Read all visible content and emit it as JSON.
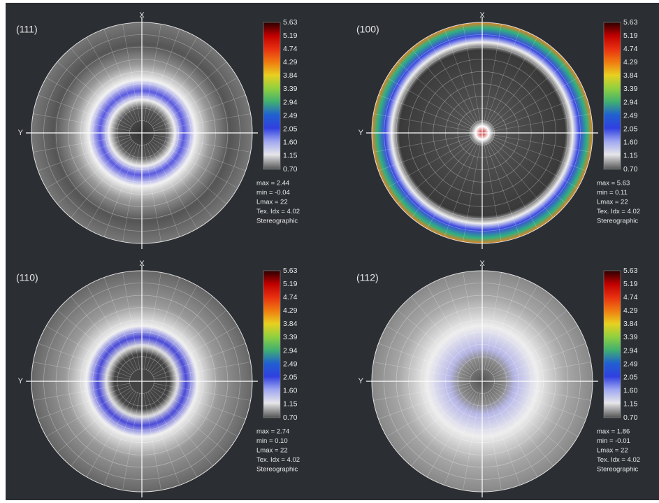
{
  "panels": [
    {
      "label": "(111)",
      "x_label": "X",
      "y_label": "Y",
      "colorbar": [
        "5.63",
        "5.19",
        "4.74",
        "4.29",
        "3.84",
        "3.39",
        "2.94",
        "2.49",
        "2.05",
        "1.60",
        "1.15",
        "0.70"
      ],
      "stats": [
        "max = 2.44",
        "min = -0.04",
        "Lmax = 22",
        "Tex. Idx = 4.02",
        "Stereographic"
      ]
    },
    {
      "label": "(100)",
      "x_label": "X",
      "y_label": "Y",
      "colorbar": [
        "5.63",
        "5.19",
        "4.74",
        "4.29",
        "3.84",
        "3.39",
        "2.94",
        "2.49",
        "2.05",
        "1.60",
        "1.15",
        "0.70"
      ],
      "stats": [
        "max = 5.63",
        "min = 0.11",
        "Lmax = 22",
        "Tex. Idx = 4.02",
        "Stereographic"
      ]
    },
    {
      "label": "(110)",
      "x_label": "X",
      "y_label": "Y",
      "colorbar": [
        "5.63",
        "5.19",
        "4.74",
        "4.29",
        "3.84",
        "3.39",
        "2.94",
        "2.49",
        "2.05",
        "1.60",
        "1.15",
        "0.70"
      ],
      "stats": [
        "max = 2.74",
        "min = 0.10",
        "Lmax = 22",
        "Tex. Idx = 4.02",
        "Stereographic"
      ]
    },
    {
      "label": "(112)",
      "x_label": "X",
      "y_label": "Y",
      "colorbar": [
        "5.63",
        "5.19",
        "4.74",
        "4.29",
        "3.84",
        "3.39",
        "2.94",
        "2.49",
        "2.05",
        "1.60",
        "1.15",
        "0.70"
      ],
      "stats": [
        "max = 1.86",
        "min = -0.01",
        "Lmax = 22",
        "Tex. Idx = 4.02",
        "Stereographic"
      ]
    }
  ]
}
